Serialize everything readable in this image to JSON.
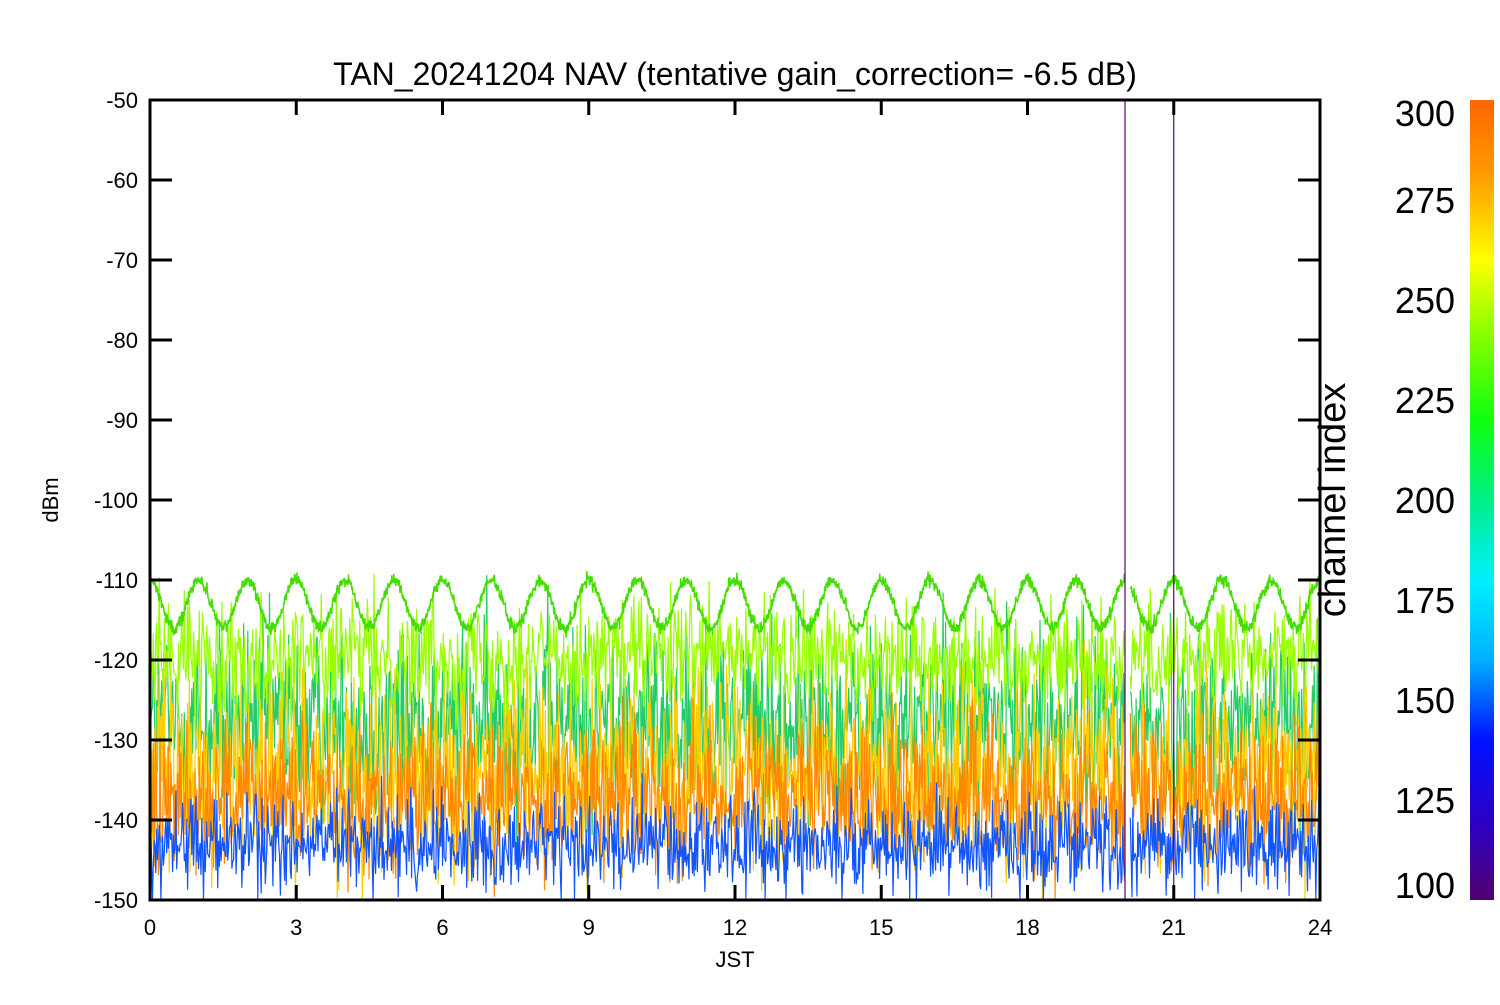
{
  "chart_data": {
    "type": "line",
    "title": "TAN_20241204 NAV (tentative gain_correction= -6.5 dB)",
    "xlabel": "JST",
    "ylabel": "dBm",
    "xlim": [
      0,
      24
    ],
    "ylim": [
      -150,
      -50
    ],
    "x_ticks": [
      "0",
      "3",
      "6",
      "9",
      "12",
      "15",
      "18",
      "21",
      "24"
    ],
    "y_ticks": [
      "-50",
      "-60",
      "-70",
      "-80",
      "-90",
      "-100",
      "-110",
      "-120",
      "-130",
      "-140",
      "-150"
    ],
    "grid": false,
    "data_gap": [
      20.0,
      20.1
    ],
    "markers_x": [
      20.0,
      21.0
    ],
    "series": [
      {
        "channel": 250,
        "color": "#44dd00",
        "mean_dbm": -113,
        "amplitude_db": 3,
        "period_hours": 1.0,
        "phase_hours": 0.0,
        "noise_db": 0.4
      },
      {
        "channel": 260,
        "color": "#99ff00",
        "mean_dbm": -119.5,
        "spread_db": 3.5
      },
      {
        "channel": 225,
        "color": "#22cc66",
        "mean_dbm": -128,
        "spread_db": 6
      },
      {
        "channel": 275,
        "color": "#ffcc00",
        "mean_dbm": -134,
        "spread_db": 6
      },
      {
        "channel": 290,
        "color": "#ff8800",
        "mean_dbm": -137,
        "spread_db": 4.5
      },
      {
        "channel": 150,
        "color": "#1155ff",
        "mean_dbm": -143,
        "spread_db": 3
      }
    ],
    "colorbar": {
      "label": "channel index",
      "min": 100,
      "max": 300,
      "ticks": [
        "100",
        "125",
        "150",
        "175",
        "200",
        "225",
        "250",
        "275",
        "300"
      ],
      "colors": [
        "#500070",
        "#2a00c8",
        "#0010ff",
        "#00b0ff",
        "#00f0ff",
        "#00ee88",
        "#10ff10",
        "#80ff00",
        "#ffff00",
        "#ffa000",
        "#ff6400"
      ]
    }
  }
}
